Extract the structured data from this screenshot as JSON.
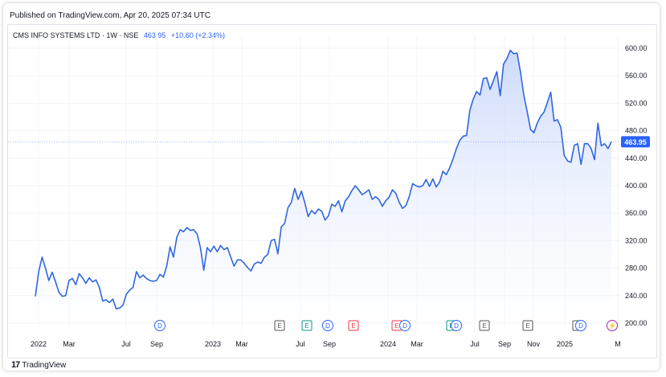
{
  "header": {
    "published_text": "Published on TradingView.com, Apr 20, 2025 07:34 UTC"
  },
  "symbol": {
    "name": "CMS INFO SYSTEMS LTD · 1W · NSE",
    "price": "463.95",
    "change": "+10.60 (+2.34%)"
  },
  "footer": {
    "logo_mark": "17",
    "brand": "TradingView"
  },
  "colors": {
    "line": "#2f67e0",
    "area_top": "#c7d6fb",
    "area_bottom": "#ffffff",
    "price_label_bg": "#2962ff",
    "grid": "#f0f3fa",
    "axis_text": "#131722"
  },
  "chart_data": {
    "type": "area",
    "title": "CMS INFO SYSTEMS LTD · 1W · NSE",
    "xlabel": "",
    "ylabel": "",
    "ylim": [
      190,
      620
    ],
    "grid": true,
    "y_ticks": [
      "200.00",
      "240.00",
      "280.00",
      "320.00",
      "360.00",
      "400.00",
      "440.00",
      "480.00",
      "520.00",
      "560.00",
      "600.00"
    ],
    "x_ticks": [
      "2022",
      "Mar",
      "Jul",
      "Sep",
      "2023",
      "Mar",
      "Jul",
      "Sep",
      "2024",
      "Mar",
      "Jul",
      "Sep",
      "Nov",
      "2025",
      "M"
    ],
    "last_price_label": "463.95",
    "series": [
      {
        "values": [
          239,
          275,
          296,
          280,
          262,
          274,
          260,
          245,
          239,
          240,
          262,
          265,
          256,
          272,
          266,
          258,
          266,
          260,
          263,
          252,
          232,
          234,
          230,
          235,
          221,
          222,
          226,
          242,
          248,
          252,
          275,
          266,
          270,
          265,
          262,
          261,
          262,
          271,
          267,
          283,
          311,
          296,
          325,
          336,
          333,
          339,
          335,
          336,
          330,
          310,
          277,
          310,
          304,
          312,
          304,
          313,
          307,
          310,
          296,
          283,
          292,
          292,
          287,
          281,
          276,
          286,
          289,
          287,
          296,
          300,
          320,
          322,
          301,
          340,
          345,
          368,
          376,
          396,
          380,
          392,
          375,
          355,
          364,
          359,
          366,
          363,
          350,
          356,
          373,
          370,
          378,
          362,
          378,
          384,
          393,
          400,
          394,
          387,
          390,
          394,
          380,
          384,
          380,
          370,
          378,
          383,
          394,
          389,
          376,
          367,
          371,
          384,
          403,
          400,
          398,
          400,
          409,
          399,
          410,
          398,
          405,
          421,
          416,
          426,
          439,
          454,
          466,
          472,
          473,
          510,
          526,
          537,
          532,
          556,
          557,
          540,
          553,
          566,
          531,
          577,
          585,
          597,
          592,
          593,
          566,
          532,
          508,
          482,
          477,
          491,
          501,
          507,
          521,
          536,
          494,
          496,
          485,
          444,
          436,
          434,
          459,
          461,
          431,
          461,
          461,
          454,
          438,
          491,
          458,
          461,
          454,
          464
        ]
      }
    ]
  },
  "events": [
    {
      "label": "D",
      "color": "#2962ff"
    },
    {
      "label": "E",
      "color": "#555555"
    },
    {
      "label": "E",
      "color": "#089981"
    },
    {
      "label": "D",
      "color": "#2962ff"
    },
    {
      "label": "E",
      "color": "#f23645"
    },
    {
      "label": "E",
      "color": "#f23645"
    },
    {
      "label": "D",
      "color": "#2962ff"
    },
    {
      "label": "E",
      "color": "#089981"
    },
    {
      "label": "D",
      "color": "#2962ff"
    },
    {
      "label": "E",
      "color": "#555555"
    },
    {
      "label": "E",
      "color": "#555555"
    },
    {
      "label": "E",
      "color": "#555555"
    },
    {
      "label": "D",
      "color": "#2962ff"
    },
    {
      "label": "⚡",
      "color": "#9c27b0"
    }
  ]
}
